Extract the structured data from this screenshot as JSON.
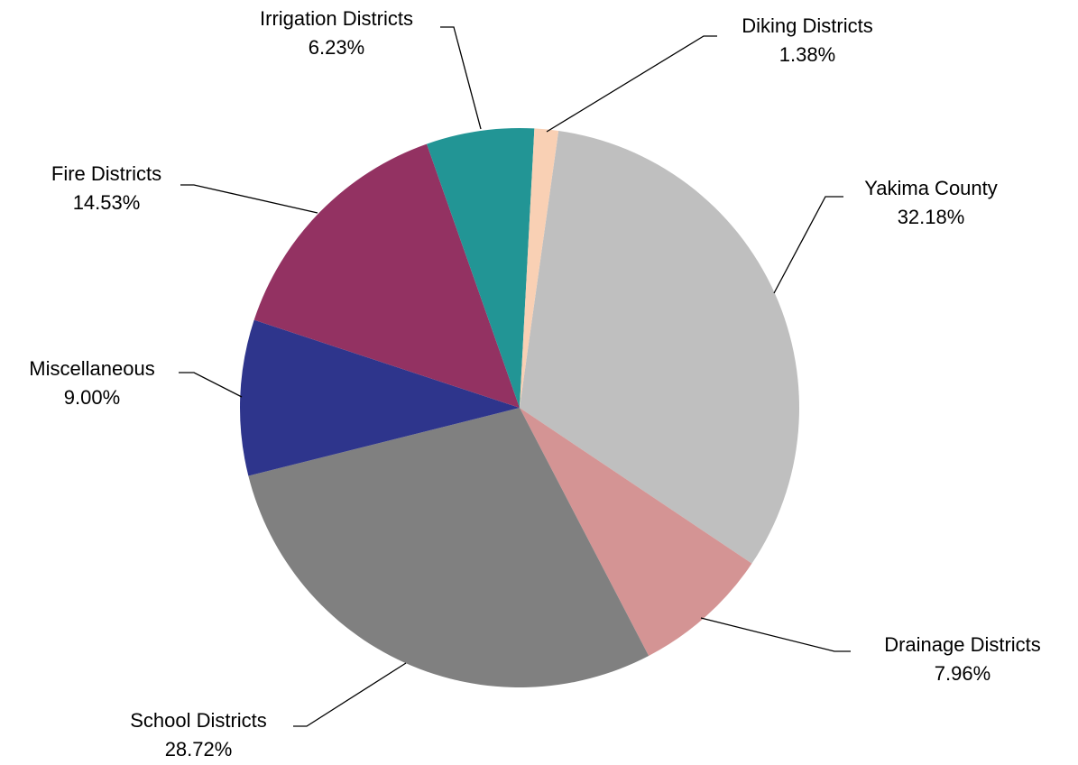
{
  "chart_data": {
    "type": "pie",
    "categories": [
      "Yakima County",
      "Drainage Districts",
      "School Districts",
      "Miscellaneous",
      "Fire Districts",
      "Irrigation Districts",
      "Diking Districts"
    ],
    "values": [
      32.18,
      7.96,
      28.72,
      9.0,
      14.53,
      6.23,
      1.38
    ],
    "value_labels": [
      "32.18%",
      "7.96%",
      "28.72%",
      "9.00%",
      "14.53%",
      "6.23%",
      "1.38%"
    ],
    "colors": [
      "#bfbfbf",
      "#d49494",
      "#808080",
      "#2e358c",
      "#933262",
      "#229595",
      "#f9d0b4"
    ]
  }
}
